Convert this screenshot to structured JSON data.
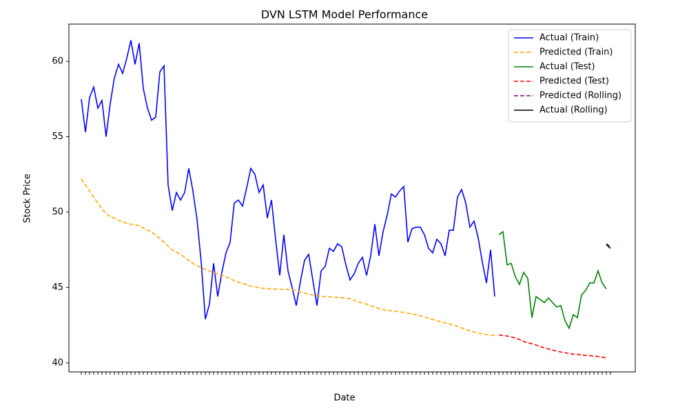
{
  "chart_data": {
    "type": "line",
    "title": "DVN LSTM Model Performance",
    "x_label": "Date",
    "y_label": "Stock Price",
    "categories": [
      null,
      null,
      null,
      null,
      null,
      null,
      null,
      null,
      null,
      null,
      null,
      null,
      null,
      null,
      null,
      null,
      null,
      null,
      null,
      null,
      null,
      null,
      null,
      null,
      null,
      null,
      null,
      null,
      null,
      null,
      null,
      null,
      null,
      null,
      null,
      null,
      null,
      null,
      null,
      null,
      null,
      null,
      null,
      null,
      null,
      null,
      null,
      null,
      null,
      null,
      null,
      null,
      null,
      null,
      null,
      null,
      null,
      null,
      null,
      null,
      null,
      null,
      null,
      null,
      null,
      null,
      null,
      null,
      null,
      null,
      null,
      null,
      null,
      null,
      null,
      null,
      null,
      null,
      null,
      null,
      null,
      null,
      null,
      null,
      null,
      null,
      null,
      null,
      null,
      null,
      null,
      null,
      null,
      null,
      null,
      null,
      null,
      null,
      null,
      null,
      null,
      null,
      null,
      null,
      null,
      null,
      null,
      null,
      null,
      null,
      null,
      null,
      null,
      null,
      null,
      null,
      null,
      null,
      null,
      null,
      null,
      null,
      null,
      null,
      null,
      null,
      null,
      null,
      null
    ],
    "ylim": [
      39.4,
      62.47
    ],
    "yticks": [
      40,
      45,
      50,
      55,
      60
    ],
    "legend": "upper right",
    "series": [
      {
        "name": "Actual (Train)",
        "color": "#0000ff",
        "dashed": false,
        "values": [
          57.5,
          55.3,
          57.6,
          58.3,
          56.9,
          57.4,
          55.0,
          57.2,
          58.9,
          59.8,
          59.2,
          60.2,
          61.4,
          59.8,
          61.2,
          58.2,
          56.9,
          56.1,
          56.3,
          59.3,
          59.7,
          51.8,
          50.1,
          51.3,
          50.8,
          51.3,
          52.9,
          51.4,
          49.5,
          46.7,
          42.9,
          43.9,
          46.6,
          44.4,
          46.0,
          47.3,
          48.0,
          50.6,
          50.8,
          50.4,
          51.6,
          52.9,
          52.5,
          51.3,
          51.8,
          49.6,
          50.8,
          48.2,
          45.8,
          48.5,
          46.1,
          45.0,
          43.8,
          45.4,
          46.8,
          47.2,
          45.5,
          43.8,
          46.1,
          46.4,
          47.6,
          47.4,
          47.9,
          47.7,
          46.5,
          45.5,
          45.9,
          46.6,
          47.0,
          45.8,
          47.1,
          49.2,
          47.1,
          48.7,
          49.8,
          51.2,
          51.0,
          51.4,
          51.7,
          48.0,
          48.9,
          49.0,
          49.0,
          48.5,
          47.6,
          47.3,
          48.2,
          47.9,
          47.1,
          48.8,
          48.8,
          51.0,
          51.5,
          50.6,
          49.0,
          49.4,
          48.3,
          46.7,
          45.3,
          47.5,
          44.4,
          null,
          null,
          null,
          null,
          null,
          null,
          null,
          null,
          null,
          null,
          null,
          null,
          null,
          null,
          null,
          null,
          null,
          null,
          null,
          null,
          null,
          null,
          null,
          null,
          null,
          null,
          null,
          null
        ]
      },
      {
        "name": "Predicted (Train)",
        "color": "#ffa500",
        "dashed": true,
        "values": [
          52.2,
          51.8,
          51.4,
          51.0,
          50.6,
          50.2,
          49.9,
          49.7,
          49.6,
          49.45,
          49.35,
          49.25,
          49.2,
          49.15,
          49.1,
          48.95,
          48.8,
          48.7,
          48.45,
          48.25,
          48.0,
          47.75,
          47.5,
          47.35,
          47.2,
          47.0,
          46.8,
          46.6,
          46.45,
          46.3,
          46.2,
          46.1,
          46.0,
          45.9,
          45.8,
          45.7,
          45.6,
          45.45,
          45.35,
          45.25,
          45.2,
          45.1,
          45.05,
          44.98,
          44.95,
          44.92,
          44.9,
          44.9,
          44.88,
          44.87,
          44.86,
          44.85,
          44.8,
          44.7,
          44.62,
          44.55,
          44.5,
          44.45,
          44.42,
          44.4,
          44.38,
          44.36,
          44.34,
          44.32,
          44.3,
          44.25,
          44.15,
          44.05,
          43.98,
          43.9,
          43.8,
          43.7,
          43.6,
          43.52,
          43.5,
          43.45,
          43.42,
          43.38,
          43.35,
          43.3,
          43.25,
          43.2,
          43.12,
          43.05,
          42.95,
          42.88,
          42.8,
          42.72,
          42.65,
          42.58,
          42.5,
          42.42,
          42.32,
          42.22,
          42.12,
          42.05,
          41.98,
          41.92,
          41.88,
          41.85,
          41.82,
          null,
          null,
          null,
          null,
          null,
          null,
          null,
          null,
          null,
          null,
          null,
          null,
          null,
          null,
          null,
          null,
          null,
          null,
          null,
          null,
          null,
          null,
          null,
          null,
          null,
          null,
          null,
          null
        ]
      },
      {
        "name": "Actual (Test)",
        "color": "#008000",
        "dashed": false,
        "values": [
          null,
          null,
          null,
          null,
          null,
          null,
          null,
          null,
          null,
          null,
          null,
          null,
          null,
          null,
          null,
          null,
          null,
          null,
          null,
          null,
          null,
          null,
          null,
          null,
          null,
          null,
          null,
          null,
          null,
          null,
          null,
          null,
          null,
          null,
          null,
          null,
          null,
          null,
          null,
          null,
          null,
          null,
          null,
          null,
          null,
          null,
          null,
          null,
          null,
          null,
          null,
          null,
          null,
          null,
          null,
          null,
          null,
          null,
          null,
          null,
          null,
          null,
          null,
          null,
          null,
          null,
          null,
          null,
          null,
          null,
          null,
          null,
          null,
          null,
          null,
          null,
          null,
          null,
          null,
          null,
          null,
          null,
          null,
          null,
          null,
          null,
          null,
          null,
          null,
          null,
          null,
          null,
          null,
          null,
          null,
          null,
          null,
          null,
          null,
          null,
          null,
          48.5,
          48.7,
          46.5,
          46.6,
          45.7,
          45.2,
          46.0,
          45.6,
          43.0,
          44.4,
          44.2,
          44.0,
          44.3,
          44.0,
          43.7,
          43.8,
          42.8,
          42.3,
          43.2,
          43.0,
          44.5,
          44.8,
          45.3,
          45.3,
          46.1,
          45.3,
          44.9,
          null
        ]
      },
      {
        "name": "Predicted (Test)",
        "color": "#ff0000",
        "dashed": true,
        "values": [
          null,
          null,
          null,
          null,
          null,
          null,
          null,
          null,
          null,
          null,
          null,
          null,
          null,
          null,
          null,
          null,
          null,
          null,
          null,
          null,
          null,
          null,
          null,
          null,
          null,
          null,
          null,
          null,
          null,
          null,
          null,
          null,
          null,
          null,
          null,
          null,
          null,
          null,
          null,
          null,
          null,
          null,
          null,
          null,
          null,
          null,
          null,
          null,
          null,
          null,
          null,
          null,
          null,
          null,
          null,
          null,
          null,
          null,
          null,
          null,
          null,
          null,
          null,
          null,
          null,
          null,
          null,
          null,
          null,
          null,
          null,
          null,
          null,
          null,
          null,
          null,
          null,
          null,
          null,
          null,
          null,
          null,
          null,
          null,
          null,
          null,
          null,
          null,
          null,
          null,
          null,
          null,
          null,
          null,
          null,
          null,
          null,
          null,
          null,
          null,
          null,
          41.85,
          41.82,
          41.78,
          41.72,
          41.65,
          41.55,
          41.42,
          41.32,
          41.27,
          41.18,
          41.08,
          41.0,
          40.92,
          40.85,
          40.78,
          40.72,
          40.68,
          40.62,
          40.58,
          40.56,
          40.53,
          40.5,
          40.48,
          40.45,
          40.42,
          40.38,
          40.35,
          null
        ]
      },
      {
        "name": "Predicted (Rolling)",
        "color": "#800080",
        "dashed": true,
        "values": [
          null,
          null,
          null,
          null,
          null,
          null,
          null,
          null,
          null,
          null,
          null,
          null,
          null,
          null,
          null,
          null,
          null,
          null,
          null,
          null,
          null,
          null,
          null,
          null,
          null,
          null,
          null,
          null,
          null,
          null,
          null,
          null,
          null,
          null,
          null,
          null,
          null,
          null,
          null,
          null,
          null,
          null,
          null,
          null,
          null,
          null,
          null,
          null,
          null,
          null,
          null,
          null,
          null,
          null,
          null,
          null,
          null,
          null,
          null,
          null,
          null,
          null,
          null,
          null,
          null,
          null,
          null,
          null,
          null,
          null,
          null,
          null,
          null,
          null,
          null,
          null,
          null,
          null,
          null,
          null,
          null,
          null,
          null,
          null,
          null,
          null,
          null,
          null,
          null,
          null,
          null,
          null,
          null,
          null,
          null,
          null,
          null,
          null,
          null,
          null,
          null,
          null,
          null,
          null,
          null,
          null,
          null,
          null,
          null,
          null,
          null,
          null,
          null,
          null,
          null,
          null,
          null,
          null,
          null,
          null,
          null,
          null,
          null,
          null,
          null,
          null,
          null,
          47.9,
          47.7
        ]
      },
      {
        "name": "Actual (Rolling)",
        "color": "#000000",
        "dashed": false,
        "values": [
          null,
          null,
          null,
          null,
          null,
          null,
          null,
          null,
          null,
          null,
          null,
          null,
          null,
          null,
          null,
          null,
          null,
          null,
          null,
          null,
          null,
          null,
          null,
          null,
          null,
          null,
          null,
          null,
          null,
          null,
          null,
          null,
          null,
          null,
          null,
          null,
          null,
          null,
          null,
          null,
          null,
          null,
          null,
          null,
          null,
          null,
          null,
          null,
          null,
          null,
          null,
          null,
          null,
          null,
          null,
          null,
          null,
          null,
          null,
          null,
          null,
          null,
          null,
          null,
          null,
          null,
          null,
          null,
          null,
          null,
          null,
          null,
          null,
          null,
          null,
          null,
          null,
          null,
          null,
          null,
          null,
          null,
          null,
          null,
          null,
          null,
          null,
          null,
          null,
          null,
          null,
          null,
          null,
          null,
          null,
          null,
          null,
          null,
          null,
          null,
          null,
          null,
          null,
          null,
          null,
          null,
          null,
          null,
          null,
          null,
          null,
          null,
          null,
          null,
          null,
          null,
          null,
          null,
          null,
          null,
          null,
          null,
          null,
          null,
          null,
          null,
          null,
          47.85,
          47.6
        ]
      }
    ]
  }
}
